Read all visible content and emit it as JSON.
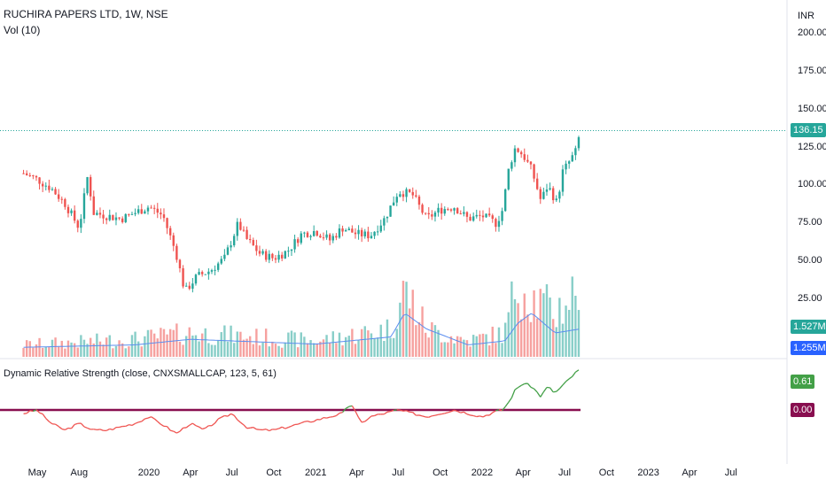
{
  "header": {
    "symbol_line": "RUCHIRA PAPERS LTD, 1W, NSE",
    "volume_line": "Vol (10)",
    "currency": "INR"
  },
  "indicator": {
    "label": "Dynamic Relative Strength (close, CNXSMALLCAP, 123, 5, 61)",
    "value_badge": "0.61",
    "zero_badge": "0.00"
  },
  "price_badges": {
    "last_price": "136.15",
    "volume": "1.527M",
    "volume_ma": "1.255M"
  },
  "colors": {
    "up": "#26a69a",
    "down": "#ef5350",
    "price_badge": "#26a69a",
    "volume_badge": "#26a69a",
    "volume_ma_badge": "#2962ff",
    "volume_ma_line": "#5b8def",
    "indicator_up": "#43a047",
    "indicator_down": "#ef5350",
    "zero_line": "#880e4f",
    "last_price_line": "#26a69a"
  },
  "chart_data": {
    "type": "candlestick",
    "title": "RUCHIRA PAPERS LTD, 1W, NSE",
    "y_axis": {
      "unit": "INR",
      "ticks": [
        "200.00",
        "175.00",
        "150.00",
        "125.00",
        "100.00",
        "75.00",
        "50.00",
        "25.00"
      ],
      "ylim": [
        20,
        205
      ]
    },
    "x_axis": {
      "ticks": [
        "May",
        "Aug",
        "2020",
        "Apr",
        "Jul",
        "Oct",
        "2021",
        "Apr",
        "Jul",
        "Oct",
        "2022",
        "Apr",
        "Jul",
        "Oct",
        "2023",
        "Apr",
        "Jul"
      ]
    },
    "last_price": 136.15,
    "price_path": {
      "dates": [
        "2019-04-01",
        "2019-05-01",
        "2019-06-01",
        "2019-07-01",
        "2019-08-01",
        "2019-08-20",
        "2019-09-01",
        "2019-10-01",
        "2019-11-01",
        "2019-12-01",
        "2020-01-01",
        "2020-02-01",
        "2020-03-01",
        "2020-03-20",
        "2020-04-15",
        "2020-05-15",
        "2020-06-15",
        "2020-07-15",
        "2020-08-01",
        "2020-09-01",
        "2020-10-01",
        "2020-11-01",
        "2020-12-01",
        "2021-01-01",
        "2021-02-01",
        "2021-03-01",
        "2021-04-01",
        "2021-05-01",
        "2021-06-01",
        "2021-07-01",
        "2021-08-01",
        "2021-09-01",
        "2021-10-01",
        "2021-11-01",
        "2021-12-01",
        "2022-01-01",
        "2022-02-01",
        "2022-02-15",
        "2022-03-01",
        "2022-03-15",
        "2022-04-01",
        "2022-04-20",
        "2022-05-10",
        "2022-05-25",
        "2022-06-15",
        "2022-06-25",
        "2022-07-10",
        "2022-07-25",
        "2022-08-05"
      ],
      "close": [
        108,
        104,
        98,
        88,
        72,
        107,
        82,
        80,
        78,
        82,
        86,
        80,
        55,
        30,
        40,
        44,
        52,
        75,
        65,
        55,
        52,
        57,
        68,
        70,
        64,
        72,
        68,
        67,
        78,
        96,
        94,
        78,
        84,
        86,
        78,
        80,
        75,
        84,
        112,
        125,
        120,
        110,
        90,
        100,
        88,
        108,
        115,
        122,
        136.15
      ]
    },
    "volume": {
      "series": [
        {
          "name": "Vol (10)"
        }
      ],
      "last_volume": "1.527M",
      "last_ma": "1.255M",
      "relative_path": {
        "dates": [
          "2019-04-01",
          "2019-12-01",
          "2020-04-01",
          "2021-01-01",
          "2021-06-15",
          "2021-07-15",
          "2021-09-01",
          "2021-12-01",
          "2022-02-20",
          "2022-03-20",
          "2022-04-20",
          "2022-06-10",
          "2022-08-05"
        ],
        "volume": [
          0.15,
          0.22,
          0.3,
          0.2,
          0.35,
          0.85,
          0.35,
          0.2,
          0.3,
          1.0,
          0.75,
          0.55,
          0.9
        ],
        "ma": [
          0.12,
          0.15,
          0.22,
          0.16,
          0.25,
          0.55,
          0.35,
          0.15,
          0.2,
          0.42,
          0.55,
          0.3,
          0.35
        ]
      }
    },
    "indicator": {
      "name": "Dynamic Relative Strength (close, CNXSMALLCAP, 123, 5, 61)",
      "current": 0.61,
      "zero": 0.0,
      "series_path": {
        "dates": [
          "2019-04-01",
          "2019-05-01",
          "2019-06-01",
          "2019-07-01",
          "2019-08-01",
          "2019-09-01",
          "2019-10-01",
          "2019-11-01",
          "2019-12-01",
          "2020-01-01",
          "2020-02-01",
          "2020-03-01",
          "2020-04-01",
          "2020-05-01",
          "2020-06-01",
          "2020-07-01",
          "2020-08-01",
          "2020-09-01",
          "2020-10-01",
          "2020-11-01",
          "2020-12-01",
          "2021-01-01",
          "2021-02-01",
          "2021-03-01",
          "2021-03-20",
          "2021-04-10",
          "2021-05-01",
          "2021-06-01",
          "2021-07-01",
          "2021-08-01",
          "2021-09-01",
          "2021-10-01",
          "2021-11-01",
          "2021-12-01",
          "2022-01-01",
          "2022-02-01",
          "2022-02-15",
          "2022-03-01",
          "2022-03-15",
          "2022-04-01",
          "2022-04-20",
          "2022-05-10",
          "2022-05-25",
          "2022-06-10",
          "2022-06-25",
          "2022-07-10",
          "2022-07-25",
          "2022-08-05"
        ],
        "values": [
          -0.05,
          0.0,
          -0.2,
          -0.3,
          -0.2,
          -0.3,
          -0.3,
          -0.25,
          -0.2,
          -0.1,
          -0.22,
          -0.35,
          -0.2,
          -0.3,
          -0.15,
          -0.05,
          -0.25,
          -0.3,
          -0.3,
          -0.25,
          -0.2,
          -0.15,
          -0.1,
          -0.05,
          0.1,
          -0.2,
          -0.1,
          -0.05,
          0.0,
          -0.05,
          -0.1,
          -0.05,
          0.0,
          -0.05,
          -0.1,
          -0.02,
          0.0,
          0.12,
          0.3,
          0.4,
          0.35,
          0.2,
          0.35,
          0.25,
          0.35,
          0.45,
          0.55,
          0.61
        ]
      }
    }
  }
}
